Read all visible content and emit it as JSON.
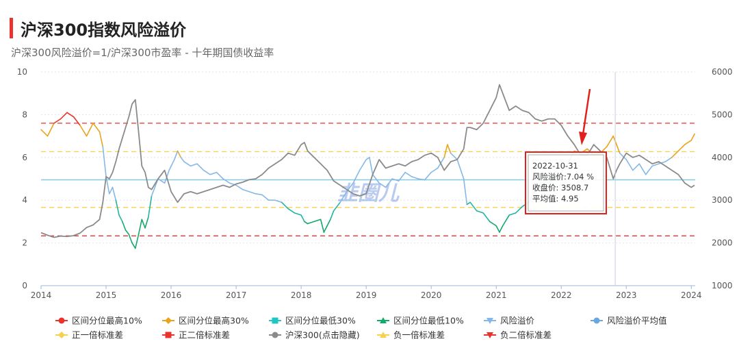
{
  "header": {
    "title": "沪深300指数风险溢价",
    "subtitle": "沪深300风险溢价=1/沪深300市盈率 - 十年期国债收益率"
  },
  "colors": {
    "red": "#e8342c",
    "orange": "#eaa31c",
    "teal": "#1fb5a3",
    "green": "#14a86b",
    "blue": "#84b8e8",
    "avg": "#87c8e2",
    "gray": "#8a8a8a",
    "yellow_dash": "#f7d04c",
    "red_dash": "#e8342c"
  },
  "watermark": "韭圈儿",
  "tooltip": {
    "date": "2022-10-31",
    "premium_label": "风险溢价:7.04 %",
    "close_label": "收盘价: 3508.7",
    "avg_label": "平均值: 4.95"
  },
  "chart_data": {
    "type": "line",
    "x_ticks": [
      "2014",
      "2015",
      "2016",
      "2017",
      "2018",
      "2019",
      "2020",
      "2021",
      "2022",
      "2023",
      "2024"
    ],
    "y_left_ticks": [
      "0",
      "2",
      "4",
      "6",
      "8",
      "10"
    ],
    "y_right_ticks": [
      "1000",
      "2000",
      "3000",
      "4000",
      "5000",
      "6000"
    ],
    "ylim_left": [
      0,
      10
    ],
    "ylim_right": [
      1000,
      6000
    ],
    "reference_lines": {
      "mean": 4.95,
      "plus_1sd": 6.27,
      "plus_2sd": 7.6,
      "minus_1sd": 3.66,
      "minus_2sd": 2.33
    },
    "series": [
      {
        "name": "风险溢价",
        "axis": "left",
        "points": [
          [
            2014.0,
            7.3
          ],
          [
            2014.1,
            7.0
          ],
          [
            2014.2,
            7.6
          ],
          [
            2014.3,
            7.8
          ],
          [
            2014.4,
            8.1
          ],
          [
            2014.5,
            7.9
          ],
          [
            2014.6,
            7.5
          ],
          [
            2014.7,
            7.0
          ],
          [
            2014.8,
            7.6
          ],
          [
            2014.9,
            7.2
          ],
          [
            2014.95,
            6.5
          ],
          [
            2015.0,
            5.1
          ],
          [
            2015.05,
            4.3
          ],
          [
            2015.1,
            4.6
          ],
          [
            2015.15,
            4.0
          ],
          [
            2015.2,
            3.3
          ],
          [
            2015.25,
            3.0
          ],
          [
            2015.3,
            2.6
          ],
          [
            2015.35,
            2.4
          ],
          [
            2015.4,
            2.0
          ],
          [
            2015.45,
            1.75
          ],
          [
            2015.5,
            2.4
          ],
          [
            2015.55,
            3.1
          ],
          [
            2015.6,
            2.7
          ],
          [
            2015.65,
            3.2
          ],
          [
            2015.7,
            4.2
          ],
          [
            2015.75,
            4.6
          ],
          [
            2015.8,
            5.0
          ],
          [
            2015.9,
            4.8
          ],
          [
            2015.97,
            5.4
          ],
          [
            2016.05,
            5.9
          ],
          [
            2016.1,
            6.3
          ],
          [
            2016.15,
            6.0
          ],
          [
            2016.2,
            5.8
          ],
          [
            2016.3,
            5.6
          ],
          [
            2016.4,
            5.7
          ],
          [
            2016.5,
            5.4
          ],
          [
            2016.6,
            5.2
          ],
          [
            2016.7,
            5.3
          ],
          [
            2016.8,
            5.0
          ],
          [
            2016.9,
            4.8
          ],
          [
            2017.0,
            4.7
          ],
          [
            2017.1,
            4.5
          ],
          [
            2017.2,
            4.4
          ],
          [
            2017.3,
            4.3
          ],
          [
            2017.4,
            4.25
          ],
          [
            2017.5,
            4.0
          ],
          [
            2017.6,
            4.0
          ],
          [
            2017.7,
            3.9
          ],
          [
            2017.8,
            3.6
          ],
          [
            2017.9,
            3.4
          ],
          [
            2018.0,
            3.3
          ],
          [
            2018.05,
            3.0
          ],
          [
            2018.1,
            2.9
          ],
          [
            2018.2,
            3.0
          ],
          [
            2018.3,
            3.1
          ],
          [
            2018.35,
            2.5
          ],
          [
            2018.4,
            2.8
          ],
          [
            2018.45,
            3.1
          ],
          [
            2018.5,
            3.5
          ],
          [
            2018.6,
            3.9
          ],
          [
            2018.7,
            4.4
          ],
          [
            2018.8,
            4.8
          ],
          [
            2018.9,
            5.4
          ],
          [
            2019.0,
            5.9
          ],
          [
            2019.05,
            6.0
          ],
          [
            2019.1,
            5.2
          ],
          [
            2019.2,
            4.8
          ],
          [
            2019.3,
            4.6
          ],
          [
            2019.4,
            5.0
          ],
          [
            2019.5,
            4.9
          ],
          [
            2019.6,
            5.3
          ],
          [
            2019.7,
            5.1
          ],
          [
            2019.8,
            5.0
          ],
          [
            2019.9,
            4.95
          ],
          [
            2020.0,
            5.3
          ],
          [
            2020.1,
            5.5
          ],
          [
            2020.2,
            6.0
          ],
          [
            2020.25,
            6.6
          ],
          [
            2020.3,
            6.2
          ],
          [
            2020.4,
            5.9
          ],
          [
            2020.5,
            5.0
          ],
          [
            2020.55,
            3.8
          ],
          [
            2020.6,
            3.9
          ],
          [
            2020.7,
            3.5
          ],
          [
            2020.8,
            3.4
          ],
          [
            2020.9,
            3.0
          ],
          [
            2021.0,
            2.8
          ],
          [
            2021.05,
            2.5
          ],
          [
            2021.1,
            2.8
          ],
          [
            2021.2,
            3.3
          ],
          [
            2021.3,
            3.4
          ],
          [
            2021.4,
            3.7
          ],
          [
            2021.5,
            3.9
          ],
          [
            2021.6,
            4.5
          ],
          [
            2021.7,
            4.8
          ],
          [
            2021.8,
            4.8
          ],
          [
            2021.9,
            5.0
          ],
          [
            2022.0,
            5.3
          ],
          [
            2022.1,
            5.7
          ],
          [
            2022.2,
            6.3
          ],
          [
            2022.3,
            6.2
          ],
          [
            2022.4,
            6.4
          ],
          [
            2022.5,
            6.1
          ],
          [
            2022.6,
            6.2
          ],
          [
            2022.7,
            6.5
          ],
          [
            2022.8,
            7.0
          ],
          [
            2022.85,
            6.6
          ],
          [
            2022.9,
            6.2
          ],
          [
            2023.0,
            5.9
          ],
          [
            2023.1,
            5.4
          ],
          [
            2023.2,
            5.7
          ],
          [
            2023.3,
            5.2
          ],
          [
            2023.4,
            5.6
          ],
          [
            2023.5,
            5.7
          ],
          [
            2023.6,
            5.8
          ],
          [
            2023.7,
            6.0
          ],
          [
            2023.8,
            6.3
          ],
          [
            2023.9,
            6.6
          ],
          [
            2024.0,
            6.8
          ],
          [
            2024.05,
            7.1
          ]
        ]
      },
      {
        "name": "沪深300(点击隐藏)",
        "axis": "right",
        "points": [
          [
            2014.0,
            2240
          ],
          [
            2014.1,
            2180
          ],
          [
            2014.2,
            2130
          ],
          [
            2014.3,
            2160
          ],
          [
            2014.4,
            2150
          ],
          [
            2014.5,
            2170
          ],
          [
            2014.6,
            2230
          ],
          [
            2014.7,
            2360
          ],
          [
            2014.8,
            2420
          ],
          [
            2014.9,
            2550
          ],
          [
            2014.95,
            2950
          ],
          [
            2015.0,
            3550
          ],
          [
            2015.05,
            3500
          ],
          [
            2015.1,
            3650
          ],
          [
            2015.15,
            3900
          ],
          [
            2015.2,
            4200
          ],
          [
            2015.3,
            4700
          ],
          [
            2015.35,
            4950
          ],
          [
            2015.4,
            5250
          ],
          [
            2015.45,
            5350
          ],
          [
            2015.5,
            4600
          ],
          [
            2015.55,
            3800
          ],
          [
            2015.6,
            3650
          ],
          [
            2015.65,
            3300
          ],
          [
            2015.7,
            3250
          ],
          [
            2015.8,
            3500
          ],
          [
            2015.9,
            3700
          ],
          [
            2016.0,
            3200
          ],
          [
            2016.1,
            2950
          ],
          [
            2016.2,
            3150
          ],
          [
            2016.3,
            3200
          ],
          [
            2016.4,
            3150
          ],
          [
            2016.5,
            3200
          ],
          [
            2016.6,
            3250
          ],
          [
            2016.7,
            3300
          ],
          [
            2016.8,
            3350
          ],
          [
            2016.9,
            3300
          ],
          [
            2017.0,
            3380
          ],
          [
            2017.1,
            3420
          ],
          [
            2017.2,
            3480
          ],
          [
            2017.3,
            3500
          ],
          [
            2017.4,
            3600
          ],
          [
            2017.5,
            3750
          ],
          [
            2017.6,
            3850
          ],
          [
            2017.7,
            3950
          ],
          [
            2017.8,
            4100
          ],
          [
            2017.9,
            4050
          ],
          [
            2018.0,
            4300
          ],
          [
            2018.05,
            4350
          ],
          [
            2018.1,
            4150
          ],
          [
            2018.2,
            4000
          ],
          [
            2018.3,
            3850
          ],
          [
            2018.4,
            3700
          ],
          [
            2018.5,
            3450
          ],
          [
            2018.6,
            3350
          ],
          [
            2018.7,
            3250
          ],
          [
            2018.8,
            3150
          ],
          [
            2018.9,
            3100
          ],
          [
            2019.0,
            3150
          ],
          [
            2019.1,
            3600
          ],
          [
            2019.2,
            3950
          ],
          [
            2019.3,
            3750
          ],
          [
            2019.4,
            3800
          ],
          [
            2019.5,
            3850
          ],
          [
            2019.6,
            3800
          ],
          [
            2019.7,
            3900
          ],
          [
            2019.8,
            3950
          ],
          [
            2019.9,
            4050
          ],
          [
            2020.0,
            4100
          ],
          [
            2020.1,
            4000
          ],
          [
            2020.2,
            3700
          ],
          [
            2020.3,
            3900
          ],
          [
            2020.4,
            3950
          ],
          [
            2020.5,
            4200
          ],
          [
            2020.55,
            4700
          ],
          [
            2020.6,
            4700
          ],
          [
            2020.7,
            4650
          ],
          [
            2020.8,
            4800
          ],
          [
            2020.9,
            5100
          ],
          [
            2021.0,
            5400
          ],
          [
            2021.05,
            5700
          ],
          [
            2021.1,
            5500
          ],
          [
            2021.2,
            5100
          ],
          [
            2021.3,
            5200
          ],
          [
            2021.4,
            5100
          ],
          [
            2021.5,
            5050
          ],
          [
            2021.6,
            4900
          ],
          [
            2021.7,
            4850
          ],
          [
            2021.8,
            4900
          ],
          [
            2021.9,
            4900
          ],
          [
            2022.0,
            4750
          ],
          [
            2022.1,
            4500
          ],
          [
            2022.2,
            4300
          ],
          [
            2022.3,
            4050
          ],
          [
            2022.4,
            4050
          ],
          [
            2022.5,
            4300
          ],
          [
            2022.6,
            4150
          ],
          [
            2022.7,
            4000
          ],
          [
            2022.8,
            3500
          ],
          [
            2022.85,
            3700
          ],
          [
            2022.9,
            3850
          ],
          [
            2023.0,
            4100
          ],
          [
            2023.1,
            4000
          ],
          [
            2023.2,
            4050
          ],
          [
            2023.3,
            3950
          ],
          [
            2023.4,
            3850
          ],
          [
            2023.5,
            3900
          ],
          [
            2023.6,
            3800
          ],
          [
            2023.7,
            3700
          ],
          [
            2023.8,
            3600
          ],
          [
            2023.9,
            3400
          ],
          [
            2024.0,
            3300
          ],
          [
            2024.05,
            3350
          ]
        ]
      }
    ],
    "legend_position": "bottom",
    "legend": [
      {
        "label": "区间分位最高10%",
        "color": "#e8342c",
        "marker": "circle"
      },
      {
        "label": "区间分位最高30%",
        "color": "#eaa31c",
        "marker": "diamond"
      },
      {
        "label": "区间分位最低30%",
        "color": "#1fc7c4",
        "marker": "square"
      },
      {
        "label": "区间分位最低10%",
        "color": "#14a86b",
        "marker": "triangle"
      },
      {
        "label": "风险溢价",
        "color": "#84b8e8",
        "marker": "triangle-down"
      },
      {
        "label": "风险溢价平均值",
        "color": "#6aa6e0",
        "marker": "circle"
      },
      {
        "label": "正一倍标准差",
        "color": "#f7d04c",
        "marker": "diamond"
      },
      {
        "label": "正二倍标准差",
        "color": "#e8342c",
        "marker": "square"
      },
      {
        "label": "沪深300(点击隐藏)",
        "color": "#8a8a8a",
        "marker": "circle"
      },
      {
        "label": "负一倍标准差",
        "color": "#f7d04c",
        "marker": "triangle"
      },
      {
        "label": "负二倍标准差",
        "color": "#e8342c",
        "marker": "triangle-down"
      }
    ]
  }
}
